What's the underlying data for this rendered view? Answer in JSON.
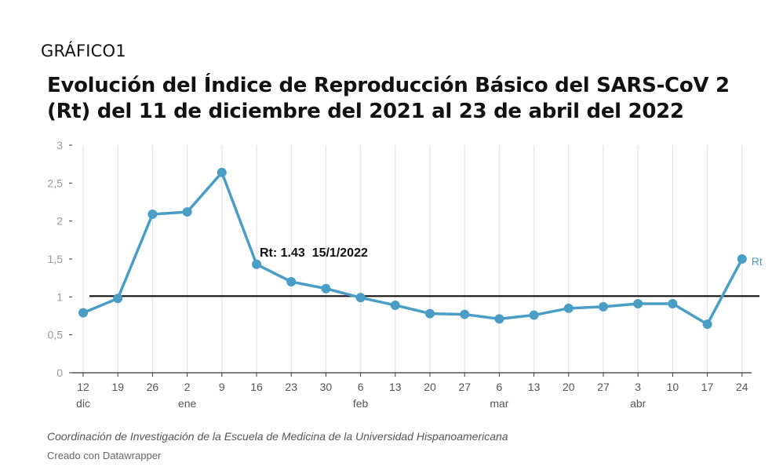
{
  "header": {
    "label": "GRÁFICO1",
    "title": "Evolución del Índice de Reproducción Básico del SARS-CoV 2 (Rt) del 11 de diciembre del 2021 al 23 de abril del 2022"
  },
  "footer": {
    "source": "Coordinación de Investigación de la Escuela de Medicina de la Universidad Hispanoamericana",
    "credit": "Creado con Datawrapper"
  },
  "colors": {
    "line": "#4a9ec6",
    "reference": "#111111",
    "grid": "#e5e5e5"
  },
  "chart_data": {
    "type": "line",
    "title": "Evolución del Índice de Reproducción Básico del SARS-CoV 2 (Rt) del 11 de diciembre del 2021 al 23 de abril del 2022",
    "xlabel": "",
    "ylabel": "",
    "ylim": [
      0,
      3
    ],
    "y_ticks": [
      "0",
      "0,5",
      "1",
      "1,5",
      "2",
      "2,5",
      "3"
    ],
    "y_tick_values": [
      0,
      0.5,
      1,
      1.5,
      2,
      2.5,
      3
    ],
    "grid": true,
    "x_tick_labels": [
      "12",
      "19",
      "26",
      "2",
      "9",
      "16",
      "23",
      "30",
      "6",
      "13",
      "20",
      "27",
      "6",
      "13",
      "20",
      "27",
      "3",
      "10",
      "17",
      "24"
    ],
    "month_labels": [
      {
        "label": "dic",
        "tick_index": 0
      },
      {
        "label": "ene",
        "tick_index": 3
      },
      {
        "label": "feb",
        "tick_index": 8
      },
      {
        "label": "mar",
        "tick_index": 12
      },
      {
        "label": "abr",
        "tick_index": 16
      }
    ],
    "reference_line": 1,
    "series": [
      {
        "name": "Rt",
        "x": [
          "2021-12-11",
          "2021-12-18",
          "2021-12-25",
          "2022-01-01",
          "2022-01-08",
          "2022-01-15",
          "2022-01-22",
          "2022-01-29",
          "2022-02-05",
          "2022-02-12",
          "2022-02-19",
          "2022-02-26",
          "2022-03-05",
          "2022-03-12",
          "2022-03-19",
          "2022-03-26",
          "2022-04-02",
          "2022-04-09",
          "2022-04-16",
          "2022-04-23"
        ],
        "values": [
          0.79,
          0.98,
          2.09,
          2.12,
          2.64,
          1.43,
          1.2,
          1.11,
          0.99,
          0.89,
          0.78,
          0.77,
          0.71,
          0.76,
          0.85,
          0.87,
          0.91,
          0.91,
          0.64,
          1.5
        ]
      }
    ],
    "annotation": {
      "text": "Rt: 1.43  15/1/2022",
      "point_index": 5
    }
  }
}
